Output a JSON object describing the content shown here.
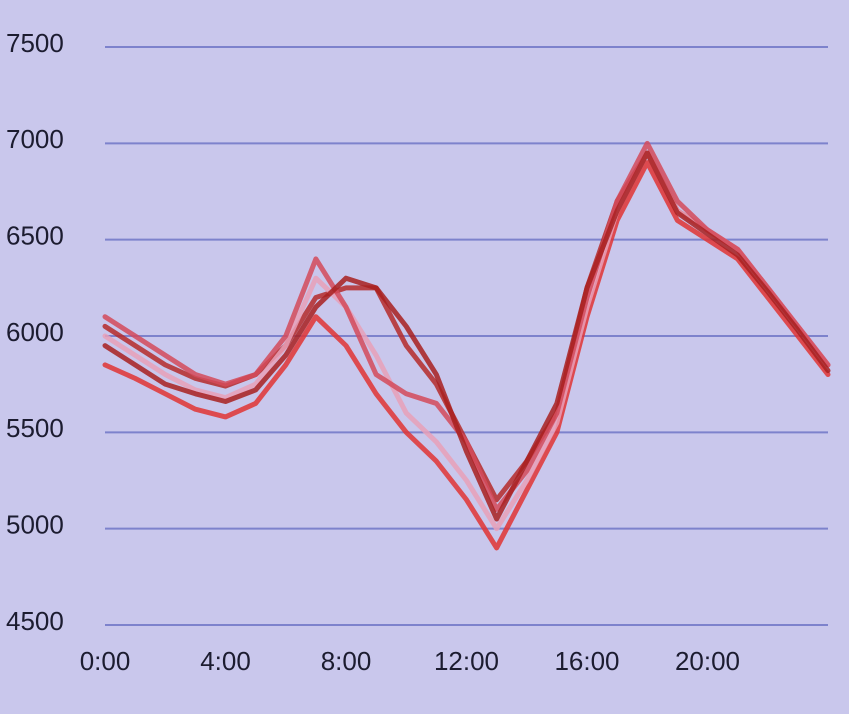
{
  "chart_data": {
    "type": "line",
    "x": [
      0,
      1,
      2,
      3,
      4,
      5,
      6,
      7,
      8,
      9,
      10,
      11,
      12,
      13,
      14,
      15,
      16,
      17,
      18,
      19,
      20,
      21,
      22,
      23,
      24
    ],
    "series": [
      {
        "color": "#b52a2a",
        "values": [
          6050,
          5950,
          5850,
          5780,
          5740,
          5800,
          5950,
          6200,
          6250,
          6250,
          5950,
          5750,
          5450,
          5150,
          5350,
          5600,
          6250,
          6700,
          6950,
          6650,
          6550,
          6450,
          6250,
          6050,
          5850
        ]
      },
      {
        "color": "#e03434",
        "values": [
          5850,
          5780,
          5700,
          5620,
          5580,
          5650,
          5850,
          6100,
          5950,
          5700,
          5500,
          5350,
          5150,
          4900,
          5200,
          5500,
          6100,
          6600,
          6900,
          6600,
          6500,
          6400,
          6200,
          6000,
          5800
        ]
      },
      {
        "color": "#e8a0b8",
        "values": [
          6000,
          5900,
          5800,
          5720,
          5680,
          5750,
          5950,
          6300,
          6150,
          5900,
          5600,
          5450,
          5250,
          5000,
          5250,
          5550,
          6150,
          6650,
          6950,
          6650,
          6550,
          6450,
          6250,
          6050,
          5850
        ]
      },
      {
        "color": "#d44a5a",
        "values": [
          6100,
          6000,
          5900,
          5800,
          5750,
          5800,
          6000,
          6400,
          6150,
          5800,
          5700,
          5650,
          5450,
          5100,
          5300,
          5600,
          6200,
          6700,
          7000,
          6700,
          6550,
          6450,
          6250,
          6050,
          5850
        ]
      },
      {
        "color": "#a82020",
        "values": [
          5950,
          5850,
          5750,
          5700,
          5660,
          5720,
          5900,
          6150,
          6300,
          6250,
          6050,
          5800,
          5400,
          5050,
          5350,
          5650,
          6250,
          6650,
          6950,
          6640,
          6530,
          6420,
          6230,
          6030,
          5820
        ]
      }
    ],
    "xlim": [
      0,
      24
    ],
    "xticks": [
      {
        "value": 0,
        "label": "0:00"
      },
      {
        "value": 4,
        "label": "4:00"
      },
      {
        "value": 8,
        "label": "8:00"
      },
      {
        "value": 12,
        "label": "12:00"
      },
      {
        "value": 16,
        "label": "16:00"
      },
      {
        "value": 20,
        "label": "20:00"
      }
    ],
    "ylim": [
      4500,
      7500
    ],
    "yticks": [
      4500,
      5000,
      5500,
      6000,
      6500,
      7000,
      7500
    ],
    "grid": true
  }
}
